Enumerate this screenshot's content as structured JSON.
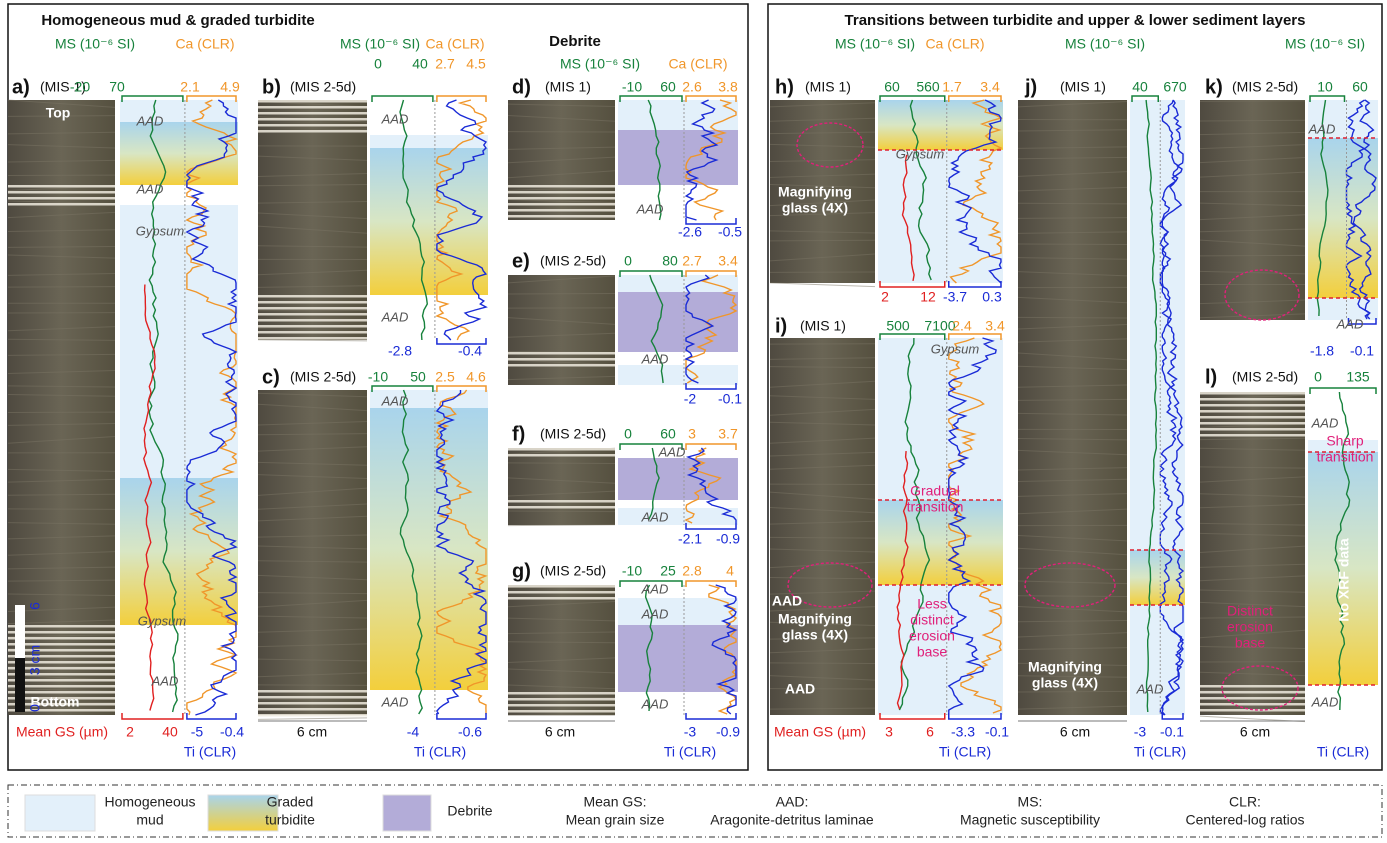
{
  "sections": [
    {
      "title": "Homogeneous mud & graded turbidite"
    },
    {
      "title": "Debrite"
    },
    {
      "title": "Transitions between turbidite and upper & lower sediment layers"
    }
  ],
  "panels": [
    {
      "label": "a)",
      "mis": "(MIS 1)",
      "ms_header": "MS (10⁻⁶ SI)",
      "ca_header": "Ca (CLR)",
      "ms_range": [
        -20,
        70
      ],
      "ca_range": [
        2.1,
        4.9
      ],
      "gs_range": [
        2,
        40
      ],
      "ti_range": [
        -5,
        -0.4
      ],
      "gs_title": "Mean GS (µm)",
      "ti_title": "Ti (CLR)",
      "annotations": [
        "Top",
        "AAD",
        "AAD",
        "Gypsum",
        "Gypsum",
        "AAD",
        "Bottom",
        "0",
        "3 cm",
        "6"
      ]
    },
    {
      "label": "b)",
      "mis": "(MIS 2-5d)",
      "ms_header": "MS (10⁻⁶ SI)",
      "ca_header": "Ca (CLR)",
      "ms_range": [
        0,
        40
      ],
      "ca_range": [
        2.7,
        4.5
      ],
      "ti_range": [
        -2.8,
        -0.4
      ],
      "annotations": [
        "AAD",
        "AAD"
      ]
    },
    {
      "label": "c)",
      "mis": "(MIS 2-5d)",
      "ms_range": [
        -10,
        50
      ],
      "ca_range": [
        2.5,
        4.6
      ],
      "ti_range": [
        -4,
        -0.6
      ],
      "scale": "6 cm",
      "ti_title": "Ti (CLR)",
      "annotations": [
        "AAD",
        "AAD"
      ]
    },
    {
      "label": "d)",
      "mis": "(MIS 1)",
      "ms_header": "MS (10⁻⁶ SI)",
      "ca_header": "Ca (CLR)",
      "ms_range": [
        -10,
        60
      ],
      "ca_range": [
        2.6,
        3.8
      ],
      "ti_range": [
        -2.6,
        -0.5
      ],
      "annotations": [
        "AAD"
      ]
    },
    {
      "label": "e)",
      "mis": "(MIS 2-5d)",
      "ms_range": [
        0,
        80
      ],
      "ca_range": [
        2.7,
        3.4
      ],
      "ti_range": [
        -2,
        -0.1
      ],
      "annotations": [
        "AAD"
      ]
    },
    {
      "label": "f)",
      "mis": "(MIS 2-5d)",
      "ms_range": [
        0,
        60
      ],
      "ca_range": [
        3,
        3.7
      ],
      "ti_range": [
        -2.1,
        -0.9
      ],
      "annotations": [
        "AAD",
        "AAD"
      ]
    },
    {
      "label": "g)",
      "mis": "(MIS 2-5d)",
      "ms_range": [
        -10,
        25
      ],
      "ca_range": [
        2.8,
        4
      ],
      "ti_range": [
        -3,
        -0.9
      ],
      "scale": "6 cm",
      "ti_title": "Ti (CLR)",
      "annotations": [
        "AAD",
        "AAD",
        "AAD"
      ]
    },
    {
      "label": "h)",
      "mis": "(MIS 1)",
      "ms_header": "MS (10⁻⁶ SI)",
      "ca_header": "Ca (CLR)",
      "ms_range": [
        60,
        560
      ],
      "ca_range": [
        1.7,
        3.4
      ],
      "gs_range": [
        2,
        12
      ],
      "ti_range": [
        -3.7,
        0.3
      ],
      "annotations": [
        "Gypsum",
        [
          "Magnifying",
          "glass (4X)"
        ]
      ]
    },
    {
      "label": "i)",
      "mis": "(MIS 1)",
      "ms_range": [
        500,
        7100
      ],
      "ca_range": [
        2.4,
        3.4
      ],
      "gs_range": [
        3,
        6
      ],
      "ti_range": [
        -3.3,
        -0.1
      ],
      "gs_title": "Mean GS (µm)",
      "ti_title": "Ti (CLR)",
      "annotations": [
        "Gypsum",
        [
          "Gradual",
          "transition"
        ],
        [
          "Less",
          "distinct",
          "erosion",
          "base"
        ],
        "AAD",
        "AAD",
        [
          "Magnifying",
          "glass (4X)"
        ]
      ]
    },
    {
      "label": "j)",
      "mis": "(MIS 1)",
      "ms_header": "MS (10⁻⁶ SI)",
      "ms_range": [
        40,
        670
      ],
      "ti_range": [
        -3,
        -0.1
      ],
      "scale": "6 cm",
      "ti_title": "Ti (CLR)",
      "annotations": [
        [
          "Magnifying",
          "glass (4X)"
        ],
        "AAD"
      ]
    },
    {
      "label": "k)",
      "mis": "(MIS 2-5d)",
      "ms_header": "MS (10⁻⁶ SI)",
      "ms_range": [
        10,
        60
      ],
      "ti_range": [
        -1.8,
        -0.1
      ],
      "annotations": [
        "AAD",
        "AAD"
      ]
    },
    {
      "label": "l)",
      "mis": "(MIS 2-5d)",
      "ms_range": [
        0,
        135
      ],
      "scale": "6 cm",
      "ti_title": "Ti (CLR)",
      "annotations": [
        "AAD",
        [
          "Sharp",
          "transition"
        ],
        "No XRF data",
        [
          "Distinct",
          "erosion",
          "base"
        ],
        "AAD"
      ]
    }
  ],
  "legend": {
    "swatches": [
      {
        "label": [
          "Homogeneous",
          "mud"
        ]
      },
      {
        "label": [
          "Graded",
          "turbidite"
        ]
      },
      {
        "label": [
          "Debrite"
        ]
      }
    ],
    "definitions": [
      {
        "term": "Mean GS:",
        "definition": "Mean grain size"
      },
      {
        "term": "AAD:",
        "definition": "Aragonite-detritus laminae"
      },
      {
        "term": "MS:",
        "definition": "Magnetic susceptibility"
      },
      {
        "term": "CLR:",
        "definition": "Centered-log ratios"
      }
    ]
  }
}
